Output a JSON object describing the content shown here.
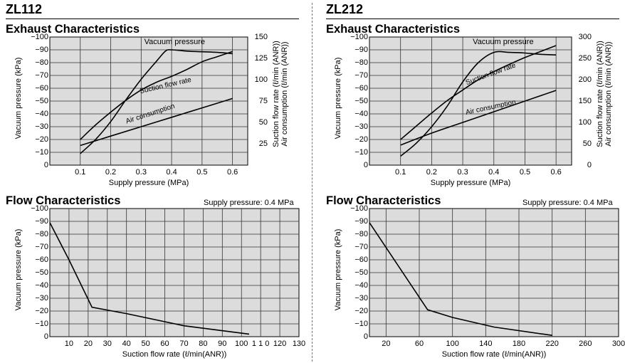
{
  "zl112": {
    "model": "ZL112",
    "exhaust_title": "Exhaust Characteristics",
    "flow_title": "Flow Characteristics",
    "flow_supply_note": "Supply pressure: 0.4 MPa"
  },
  "zl212": {
    "model": "ZL212",
    "exhaust_title": "Exhaust Characteristics",
    "flow_title": "Flow Characteristics",
    "flow_supply_note": "Supply pressure: 0.4 MPa"
  },
  "chart_data": [
    {
      "id": "zl112-exhaust",
      "type": "line",
      "title": "Exhaust Characteristics",
      "xlabel": "Supply pressure (MPa)",
      "ylabel": "Vacuum pressure (kPa)",
      "y2label": [
        "Suction flow rate (ℓ/min (ANR))",
        "Air consumption (ℓ/min (ANR))"
      ],
      "xlim": [
        0,
        0.65
      ],
      "ylim": [
        0,
        -100
      ],
      "y2lim": [
        0,
        150
      ],
      "grid": true,
      "x_ticks": [
        0.1,
        0.2,
        0.3,
        0.4,
        0.5,
        0.6
      ],
      "x_tick_labels": [
        "0.1",
        "0.2",
        "0.3",
        "0.4",
        "0.5",
        "0.6"
      ],
      "y_ticks": [
        0,
        -10,
        -20,
        -30,
        -40,
        -50,
        -60,
        -70,
        -80,
        -90,
        -100
      ],
      "y_tick_labels": [
        "0",
        "−10",
        "−20",
        "−30",
        "−40",
        "−50",
        "−60",
        "−70",
        "−80",
        "−90",
        "−100"
      ],
      "y2_ticks": [
        25,
        50,
        75,
        100,
        125,
        150
      ],
      "y2_tick_labels": [
        "25",
        "50",
        "75",
        "100",
        "125",
        "150"
      ],
      "series": [
        {
          "name": "Vacuum pressure",
          "axis": "left",
          "label_at": [
            0.41,
            -96
          ],
          "x": [
            0.1,
            0.15,
            0.2,
            0.25,
            0.3,
            0.35,
            0.38,
            0.4,
            0.45,
            0.5,
            0.55,
            0.6
          ],
          "y": [
            -9,
            -20,
            -34,
            -51,
            -67,
            -81,
            -89,
            -90,
            -89,
            -88.5,
            -88,
            -87
          ]
        },
        {
          "name": "Suction flow rate",
          "axis": "right",
          "label_at": [
            0.38,
            -62
          ],
          "label_angle": -13,
          "x": [
            0.1,
            0.15,
            0.2,
            0.25,
            0.3,
            0.35,
            0.4,
            0.45,
            0.5,
            0.55,
            0.6
          ],
          "y": [
            30,
            47,
            62,
            76,
            88,
            97,
            104,
            112,
            121,
            127,
            133
          ]
        },
        {
          "name": "Air consumption",
          "axis": "right",
          "label_at": [
            0.33,
            -40
          ],
          "label_angle": -18,
          "x": [
            0.1,
            0.2,
            0.3,
            0.4,
            0.5,
            0.6
          ],
          "y": [
            23,
            34,
            45,
            56,
            67,
            78
          ]
        }
      ]
    },
    {
      "id": "zl212-exhaust",
      "type": "line",
      "title": "Exhaust Characteristics",
      "xlabel": "Supply pressure (MPa)",
      "ylabel": "Vacuum pressure (kPa)",
      "y2label": [
        "Suction flow rate (ℓ/min (ANR))",
        "Air consumption (ℓ/min (ANR))"
      ],
      "xlim": [
        0,
        0.65
      ],
      "ylim": [
        0,
        -100
      ],
      "y2lim": [
        0,
        300
      ],
      "grid": true,
      "x_ticks": [
        0.1,
        0.2,
        0.3,
        0.4,
        0.5,
        0.6
      ],
      "x_tick_labels": [
        "0.1",
        "0.2",
        "0.3",
        "0.4",
        "0.5",
        "0.6"
      ],
      "y_ticks": [
        0,
        -10,
        -20,
        -30,
        -40,
        -50,
        -60,
        -70,
        -80,
        -90,
        -100
      ],
      "y_tick_labels": [
        "0",
        "−10",
        "−20",
        "−30",
        "−40",
        "−50",
        "−60",
        "−70",
        "−80",
        "−90",
        "−100"
      ],
      "y2_ticks": [
        0,
        50,
        100,
        150,
        200,
        250,
        300
      ],
      "y2_tick_labels": [
        "0",
        "50",
        "100",
        "150",
        "200",
        "250",
        "300"
      ],
      "series": [
        {
          "name": "Vacuum pressure",
          "axis": "left",
          "label_at": [
            0.43,
            -96
          ],
          "x": [
            0.1,
            0.15,
            0.2,
            0.25,
            0.3,
            0.35,
            0.4,
            0.45,
            0.5,
            0.55,
            0.6
          ],
          "y": [
            -7,
            -17,
            -30,
            -46,
            -65,
            -80,
            -88,
            -88,
            -87.5,
            -86.5,
            -86
          ]
        },
        {
          "name": "Suction flow rate",
          "axis": "right",
          "label_at": [
            0.39,
            -71
          ],
          "label_angle": -20,
          "x": [
            0.1,
            0.15,
            0.2,
            0.25,
            0.3,
            0.35,
            0.4,
            0.45,
            0.5,
            0.55,
            0.6
          ],
          "y": [
            60,
            91,
            122,
            151,
            176,
            200,
            219,
            236,
            252,
            266,
            280
          ]
        },
        {
          "name": "Air consumption",
          "axis": "right",
          "label_at": [
            0.39,
            -45
          ],
          "label_angle": -12,
          "x": [
            0.1,
            0.2,
            0.3,
            0.4,
            0.5,
            0.6
          ],
          "y": [
            47,
            75,
            100,
            125,
            150,
            175
          ]
        }
      ]
    },
    {
      "id": "zl112-flow",
      "type": "line",
      "title": "Flow Characteristics",
      "annotation": "Supply pressure: 0.4 MPa",
      "xlabel": "Suction flow rate (ℓ/min(ANR))",
      "ylabel": "Vacuum pressure (kPa)",
      "xlim": [
        0,
        130
      ],
      "ylim": [
        0,
        -100
      ],
      "grid": true,
      "x_ticks": [
        10,
        20,
        30,
        40,
        50,
        60,
        70,
        80,
        90,
        100,
        110,
        120,
        130
      ],
      "x_tick_labels": [
        "10",
        "20",
        "30",
        "40",
        "50",
        "60",
        "70",
        "80",
        "90",
        "100",
        "1 1 0",
        "120",
        "130"
      ],
      "y_ticks": [
        0,
        -10,
        -20,
        -30,
        -40,
        -50,
        -60,
        -70,
        -80,
        -90,
        -100
      ],
      "y_tick_labels": [
        "0",
        "−10",
        "−20",
        "−30",
        "−40",
        "−50",
        "−60",
        "−70",
        "−80",
        "−90",
        "−100"
      ],
      "series": [
        {
          "axis": "left",
          "x": [
            0,
            10,
            22,
            40,
            70,
            104
          ],
          "y": [
            -89,
            -60,
            -23,
            -18,
            -8.5,
            -2
          ]
        }
      ]
    },
    {
      "id": "zl212-flow",
      "type": "line",
      "title": "Flow Characteristics",
      "annotation": "Supply pressure: 0.4 MPa",
      "xlabel": "Suction flow rate (ℓ/min(ANR))",
      "ylabel": "Vacuum pressure (kPa)",
      "xlim": [
        0,
        300
      ],
      "ylim": [
        0,
        -100
      ],
      "grid": true,
      "x_ticks": [
        20,
        60,
        100,
        140,
        180,
        220,
        260,
        300
      ],
      "x_tick_labels": [
        "20",
        "60",
        "100",
        "140",
        "180",
        "220",
        "260",
        "300"
      ],
      "y_ticks": [
        0,
        -10,
        -20,
        -30,
        -40,
        -50,
        -60,
        -70,
        -80,
        -90,
        -100
      ],
      "y_tick_labels": [
        "0",
        "−10",
        "−20",
        "−30",
        "−40",
        "−50",
        "−60",
        "−70",
        "−80",
        "−90",
        "−100"
      ],
      "series": [
        {
          "axis": "left",
          "x": [
            0,
            70,
            100,
            150,
            220
          ],
          "y": [
            -89,
            -21,
            -15,
            -7.5,
            -1
          ]
        }
      ]
    }
  ]
}
